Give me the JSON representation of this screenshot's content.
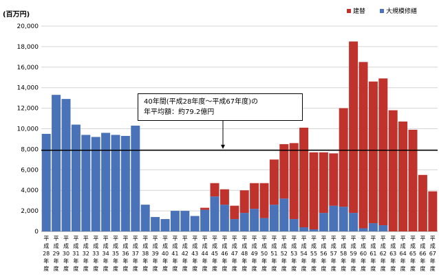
{
  "chart_data": {
    "type": "bar",
    "stacked": true,
    "yunit": "(百万円)",
    "ylim": [
      0,
      20000
    ],
    "yticks": [
      "20,000",
      "18,000",
      "16,000",
      "14,000",
      "12,000",
      "10,000",
      "8,000",
      "6,000",
      "4,000",
      "2,000",
      "0"
    ],
    "grid": true,
    "legend_position": "top-right",
    "categories": [
      "28",
      "29",
      "30",
      "31",
      "32",
      "33",
      "34",
      "35",
      "36",
      "37",
      "38",
      "39",
      "40",
      "41",
      "42",
      "43",
      "44",
      "45",
      "46",
      "47",
      "48",
      "49",
      "50",
      "51",
      "52",
      "53",
      "54",
      "55",
      "56",
      "57",
      "58",
      "59",
      "60",
      "61",
      "62",
      "63",
      "64",
      "65",
      "66",
      "67"
    ],
    "tick_prefix": "平成",
    "tick_suffix": "年度",
    "series": [
      {
        "name": "大規模修繕",
        "color": "#4a72b8",
        "values": [
          9500,
          13300,
          12900,
          10400,
          9400,
          9200,
          9600,
          9400,
          9300,
          10300,
          2600,
          1400,
          1200,
          2000,
          2000,
          1500,
          2100,
          3400,
          2600,
          1200,
          1800,
          2200,
          1300,
          2600,
          3200,
          1200,
          400,
          200,
          1800,
          2500,
          2400,
          1800,
          300,
          800,
          600,
          0,
          0,
          0,
          0,
          0
        ]
      },
      {
        "name": "建替",
        "color": "#c0322c",
        "values": [
          0,
          0,
          0,
          0,
          0,
          0,
          0,
          0,
          0,
          0,
          0,
          0,
          0,
          0,
          0,
          0,
          200,
          1300,
          1500,
          1300,
          2200,
          2500,
          3400,
          4400,
          5300,
          7400,
          9700,
          7500,
          5900,
          5100,
          9600,
          16700,
          16200,
          13800,
          14300,
          11800,
          10700,
          9900,
          5500,
          3900
        ]
      }
    ],
    "reference_line": {
      "value": 7900,
      "label_line1": "40年間(平成28年度～平成67年度)の",
      "label_line2": "年平均額：約79.2億円"
    }
  }
}
